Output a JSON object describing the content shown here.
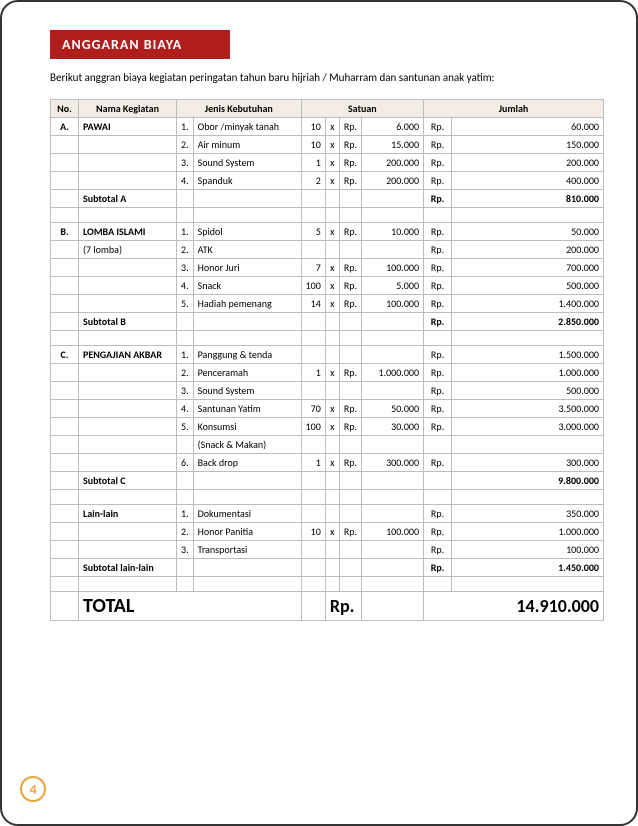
{
  "banner": "ANGGARAN BIAYA",
  "intro": "Berikut anggran biaya kegiatan peringatan tahun baru hijriah / Muharram dan santunan anak yatim:",
  "headers": {
    "no": "No.",
    "keg": "Nama Kegiatan",
    "need": "Jenis Kebutuhan",
    "sat": "Satuan",
    "jml": "Jumlah"
  },
  "sections": [
    {
      "no": "A.",
      "name": "PAWAI",
      "note": "",
      "subtotal_label": "Subtotal A",
      "subtotal_rp": "Rp.",
      "subtotal": "810.000",
      "items": [
        {
          "i": "1.",
          "need": "Obor /minyak tanah",
          "qty": "10",
          "x": "x",
          "rp1": "Rp.",
          "unit": "6.000",
          "rp2": "Rp.",
          "amt": "60.000"
        },
        {
          "i": "2.",
          "need": "Air minum",
          "qty": "10",
          "x": "x",
          "rp1": "Rp.",
          "unit": "15.000",
          "rp2": "Rp.",
          "amt": "150.000"
        },
        {
          "i": "3.",
          "need": "Sound System",
          "qty": "1",
          "x": "x",
          "rp1": "Rp.",
          "unit": "200.000",
          "rp2": "Rp.",
          "amt": "200.000"
        },
        {
          "i": "4.",
          "need": "Spanduk",
          "qty": "2",
          "x": "x",
          "rp1": "Rp.",
          "unit": "200.000",
          "rp2": "Rp.",
          "amt": "400.000"
        }
      ]
    },
    {
      "no": "B.",
      "name": "LOMBA ISLAMI",
      "note": "(7 lomba)",
      "subtotal_label": "Subtotal B",
      "subtotal_rp": "Rp.",
      "subtotal": "2.850.000",
      "items": [
        {
          "i": "1.",
          "need": "Spidol",
          "qty": "5",
          "x": "x",
          "rp1": "Rp.",
          "unit": "10.000",
          "rp2": "Rp.",
          "amt": "50.000"
        },
        {
          "i": "2.",
          "need": "ATK",
          "qty": "",
          "x": "",
          "rp1": "",
          "unit": "",
          "rp2": "Rp.",
          "amt": "200.000"
        },
        {
          "i": "3.",
          "need": "Honor Juri",
          "qty": "7",
          "x": "x",
          "rp1": "Rp.",
          "unit": "100.000",
          "rp2": "Rp.",
          "amt": "700.000"
        },
        {
          "i": "4.",
          "need": "Snack",
          "qty": "100",
          "x": "x",
          "rp1": "Rp.",
          "unit": "5.000",
          "rp2": "Rp.",
          "amt": "500.000"
        },
        {
          "i": "5.",
          "need": "Hadiah pemenang",
          "qty": "14",
          "x": "x",
          "rp1": "Rp.",
          "unit": "100.000",
          "rp2": "Rp.",
          "amt": "1.400.000"
        }
      ]
    },
    {
      "no": "C.",
      "name": "PENGAJIAN AKBAR",
      "note": "",
      "subtotal_label": "Subtotal C",
      "subtotal_rp": "",
      "subtotal": "9.800.000",
      "items": [
        {
          "i": "1.",
          "need": "Panggung & tenda",
          "qty": "",
          "x": "",
          "rp1": "",
          "unit": "",
          "rp2": "Rp.",
          "amt": "1.500.000"
        },
        {
          "i": "2.",
          "need": "Penceramah",
          "qty": "1",
          "x": "x",
          "rp1": "Rp.",
          "unit": "1.000.000",
          "rp2": "Rp.",
          "amt": "1.000.000"
        },
        {
          "i": "3.",
          "need": "Sound System",
          "qty": "",
          "x": "",
          "rp1": "",
          "unit": "",
          "rp2": "Rp.",
          "amt": "500.000"
        },
        {
          "i": "4.",
          "need": "Santunan Yatim",
          "qty": "70",
          "x": "x",
          "rp1": "Rp.",
          "unit": "50.000",
          "rp2": "Rp.",
          "amt": "3.500.000"
        },
        {
          "i": "5.",
          "need": "Konsumsi",
          "qty": "100",
          "x": "x",
          "rp1": "Rp.",
          "unit": "30.000",
          "rp2": "Rp.",
          "amt": "3.000.000"
        },
        {
          "i": "",
          "need": "(Snack & Makan)",
          "qty": "",
          "x": "",
          "rp1": "",
          "unit": "",
          "rp2": "",
          "amt": ""
        },
        {
          "i": "6.",
          "need": "Back drop",
          "qty": "1",
          "x": "x",
          "rp1": "Rp.",
          "unit": "300.000",
          "rp2": "Rp.",
          "amt": "300.000"
        }
      ]
    },
    {
      "no": "",
      "name": "Lain-lain",
      "note": "",
      "subtotal_label": "Subtotal lain-lain",
      "subtotal_rp": "Rp.",
      "subtotal": "1.450.000",
      "items": [
        {
          "i": "1.",
          "need": "Dokumentasi",
          "qty": "",
          "x": "",
          "rp1": "",
          "unit": "",
          "rp2": "Rp.",
          "amt": "350.000"
        },
        {
          "i": "2.",
          "need": "Honor Panitia",
          "qty": "10",
          "x": "x",
          "rp1": "Rp.",
          "unit": "100.000",
          "rp2": "Rp.",
          "amt": "1.000.000"
        },
        {
          "i": "3.",
          "need": "Transportasi",
          "qty": "",
          "x": "",
          "rp1": "",
          "unit": "",
          "rp2": "Rp.",
          "amt": "100.000"
        }
      ]
    }
  ],
  "total": {
    "label": "TOTAL",
    "rp": "Rp.",
    "amount": "14.910.000"
  },
  "page_number": "4"
}
